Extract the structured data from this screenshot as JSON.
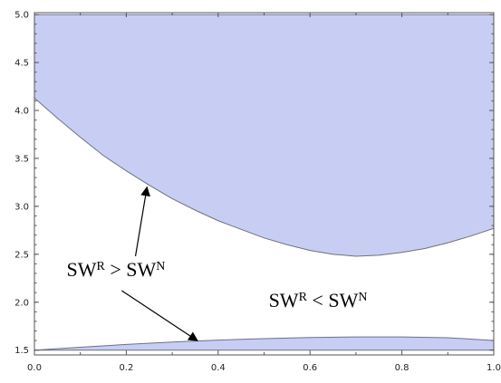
{
  "chart_data": {
    "type": "area",
    "title": "",
    "xlabel": "",
    "ylabel": "",
    "xlim": [
      0.0,
      1.0
    ],
    "ylim": [
      1.45,
      5.02
    ],
    "x_ticks": [
      "0.0",
      "0.2",
      "0.4",
      "0.6",
      "0.8",
      "1.0"
    ],
    "y_ticks": [
      "1.5",
      "2.0",
      "2.5",
      "3.0",
      "3.5",
      "4.0",
      "4.5",
      "5.0"
    ],
    "grid": false,
    "fill_color": "#c8cdf4",
    "edge_color": "#6f7280",
    "regions": [
      {
        "lower_boundary": {
          "x": [
            0.0,
            0.05,
            0.1,
            0.15,
            0.2,
            0.25,
            0.3,
            0.35,
            0.4,
            0.45,
            0.5,
            0.55,
            0.6,
            0.65,
            0.7,
            0.75,
            0.8,
            0.85,
            0.9,
            0.95,
            1.0
          ],
          "y": [
            4.13,
            3.92,
            3.72,
            3.53,
            3.37,
            3.22,
            3.08,
            2.96,
            2.85,
            2.76,
            2.67,
            2.6,
            2.54,
            2.5,
            2.48,
            2.49,
            2.52,
            2.56,
            2.62,
            2.69,
            2.77
          ]
        },
        "upper_boundary": 5.0
      },
      {
        "lower_boundary": 1.5,
        "upper_boundary": {
          "x": [
            0.0,
            0.1,
            0.2,
            0.3,
            0.4,
            0.5,
            0.6,
            0.7,
            0.8,
            0.9,
            1.0
          ],
          "y": [
            1.5,
            1.53,
            1.56,
            1.585,
            1.605,
            1.62,
            1.632,
            1.638,
            1.638,
            1.63,
            1.6
          ]
        }
      }
    ],
    "annotations": [
      {
        "text": "SW",
        "sup": "R",
        "op": " > ",
        "text2": "SW",
        "sup2": "N",
        "anchor": [
          0.07,
          2.27
        ]
      },
      {
        "text": "SW",
        "sup": "R",
        "op": " < ",
        "text2": "SW",
        "sup2": "N",
        "anchor": [
          0.51,
          1.95
        ]
      }
    ],
    "arrows": [
      {
        "from": [
          0.22,
          2.48
        ],
        "to": [
          0.245,
          3.2
        ]
      },
      {
        "from": [
          0.19,
          2.12
        ],
        "to": [
          0.355,
          1.598
        ]
      }
    ]
  }
}
